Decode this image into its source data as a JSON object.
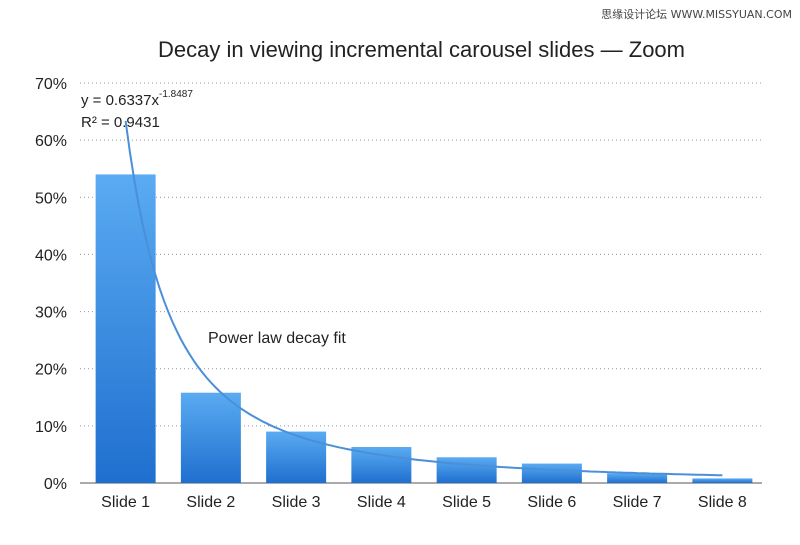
{
  "watermark": "思缘设计论坛 WWW.MISSYUAN.COM",
  "chart_data": {
    "type": "bar",
    "title": "Decay in viewing incremental carousel slides — Zoom",
    "categories": [
      "Slide 1",
      "Slide 2",
      "Slide 3",
      "Slide 4",
      "Slide 5",
      "Slide 6",
      "Slide 7",
      "Slide 8"
    ],
    "values": [
      54,
      15.8,
      9,
      6.3,
      4.5,
      3.4,
      1.7,
      0.8
    ],
    "y_unit": "%",
    "ylim": [
      0,
      70
    ],
    "yticks": [
      "0%",
      "10%",
      "20%",
      "30%",
      "40%",
      "50%",
      "60%",
      "70%"
    ],
    "grid": "dotted horizontal",
    "bar_color_top": "#5aabf2",
    "bar_color_bottom": "#1f6fcf",
    "trendline": {
      "type": "power",
      "a": 0.6337,
      "b": -1.8487,
      "equation_prefix": "y = 0.6337x",
      "equation_exponent": "-1.8487",
      "r_squared_label": "R² = 0.9431",
      "color": "#4a8fd8"
    },
    "annotation": "Power law decay fit"
  }
}
